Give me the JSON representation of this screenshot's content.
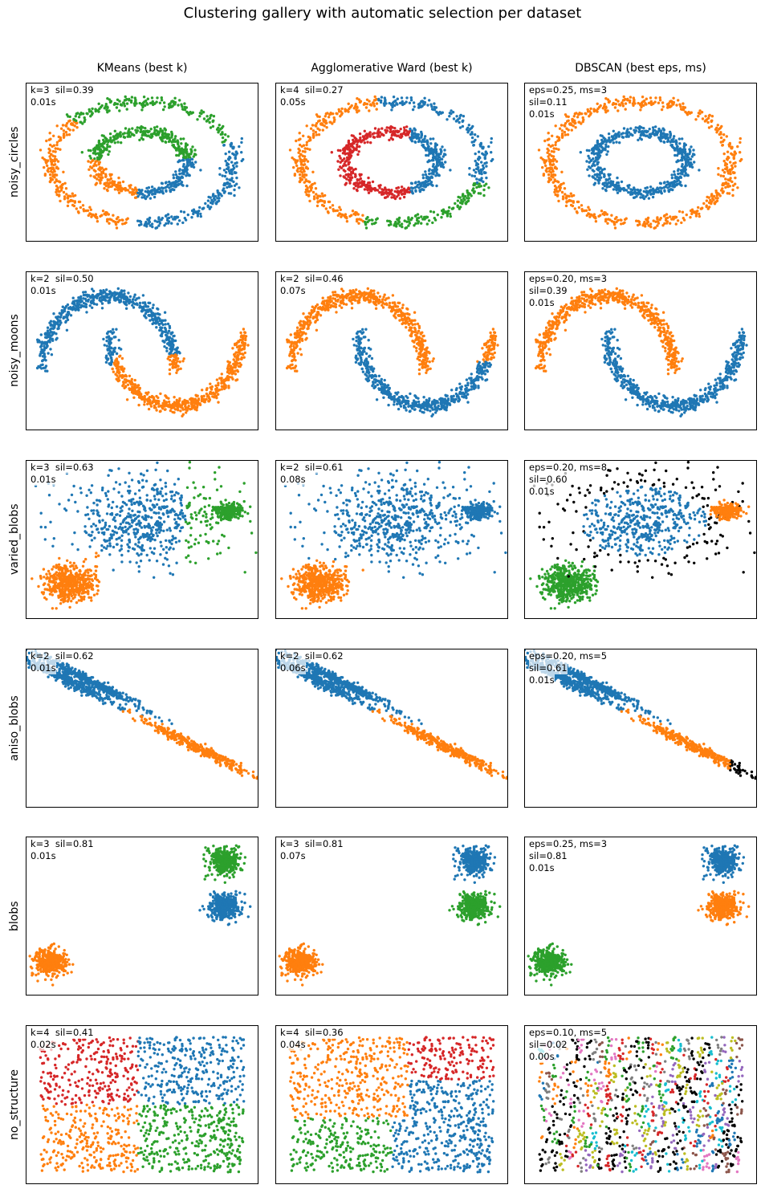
{
  "title": "Clustering gallery with automatic selection per dataset",
  "columns": [
    "KMeans (best k)",
    "Agglomerative Ward (best k)",
    "DBSCAN (best eps, ms)"
  ],
  "rows": [
    "noisy_circles",
    "noisy_moons",
    "varied_blobs",
    "aniso_blobs",
    "blobs",
    "no_structure"
  ],
  "palette": [
    "#1f77b4",
    "#ff7f0e",
    "#2ca02c",
    "#d62728",
    "#9467bd",
    "#8c564b",
    "#e377c2",
    "#7f7f7f",
    "#bcbd22",
    "#17becf"
  ],
  "noise_color": "#000000",
  "chart_data": [
    {
      "type": "scatter",
      "dataset": "noisy_circles",
      "method": "KMeans",
      "annotation": [
        "k=3  sil=0.39",
        "0.01s"
      ]
    },
    {
      "type": "scatter",
      "dataset": "noisy_circles",
      "method": "Agglomerative Ward",
      "annotation": [
        "k=4  sil=0.27",
        "0.05s"
      ]
    },
    {
      "type": "scatter",
      "dataset": "noisy_circles",
      "method": "DBSCAN",
      "annotation": [
        "eps=0.25, ms=3",
        "sil=0.11",
        "0.01s"
      ]
    },
    {
      "type": "scatter",
      "dataset": "noisy_moons",
      "method": "KMeans",
      "annotation": [
        "k=2  sil=0.50",
        "0.01s"
      ]
    },
    {
      "type": "scatter",
      "dataset": "noisy_moons",
      "method": "Agglomerative Ward",
      "annotation": [
        "k=2  sil=0.46",
        "0.07s"
      ]
    },
    {
      "type": "scatter",
      "dataset": "noisy_moons",
      "method": "DBSCAN",
      "annotation": [
        "eps=0.20, ms=3",
        "sil=0.39",
        "0.01s"
      ]
    },
    {
      "type": "scatter",
      "dataset": "varied_blobs",
      "method": "KMeans",
      "annotation": [
        "k=3  sil=0.63",
        "0.01s"
      ]
    },
    {
      "type": "scatter",
      "dataset": "varied_blobs",
      "method": "Agglomerative Ward",
      "annotation": [
        "k=2  sil=0.61",
        "0.08s"
      ]
    },
    {
      "type": "scatter",
      "dataset": "varied_blobs",
      "method": "DBSCAN",
      "annotation": [
        "eps=0.20, ms=8",
        "sil=0.60",
        "0.01s"
      ]
    },
    {
      "type": "scatter",
      "dataset": "aniso_blobs",
      "method": "KMeans",
      "annotation": [
        "k=2  sil=0.62",
        "0.01s"
      ]
    },
    {
      "type": "scatter",
      "dataset": "aniso_blobs",
      "method": "Agglomerative Ward",
      "annotation": [
        "k=2  sil=0.62",
        "0.06s"
      ]
    },
    {
      "type": "scatter",
      "dataset": "aniso_blobs",
      "method": "DBSCAN",
      "annotation": [
        "eps=0.20, ms=5",
        "sil=0.61",
        "0.01s"
      ]
    },
    {
      "type": "scatter",
      "dataset": "blobs",
      "method": "KMeans",
      "annotation": [
        "k=3  sil=0.81",
        "0.01s"
      ]
    },
    {
      "type": "scatter",
      "dataset": "blobs",
      "method": "Agglomerative Ward",
      "annotation": [
        "k=3  sil=0.81",
        "0.07s"
      ]
    },
    {
      "type": "scatter",
      "dataset": "blobs",
      "method": "DBSCAN",
      "annotation": [
        "eps=0.25, ms=3",
        "sil=0.81",
        "0.01s"
      ]
    },
    {
      "type": "scatter",
      "dataset": "no_structure",
      "method": "KMeans",
      "annotation": [
        "k=4  sil=0.41",
        "0.02s"
      ]
    },
    {
      "type": "scatter",
      "dataset": "no_structure",
      "method": "Agglomerative Ward",
      "annotation": [
        "k=4  sil=0.36",
        "0.04s"
      ]
    },
    {
      "type": "scatter",
      "dataset": "no_structure",
      "method": "DBSCAN",
      "annotation": [
        "eps=0.10, ms=5",
        "sil=0.02",
        "0.00s"
      ]
    }
  ]
}
